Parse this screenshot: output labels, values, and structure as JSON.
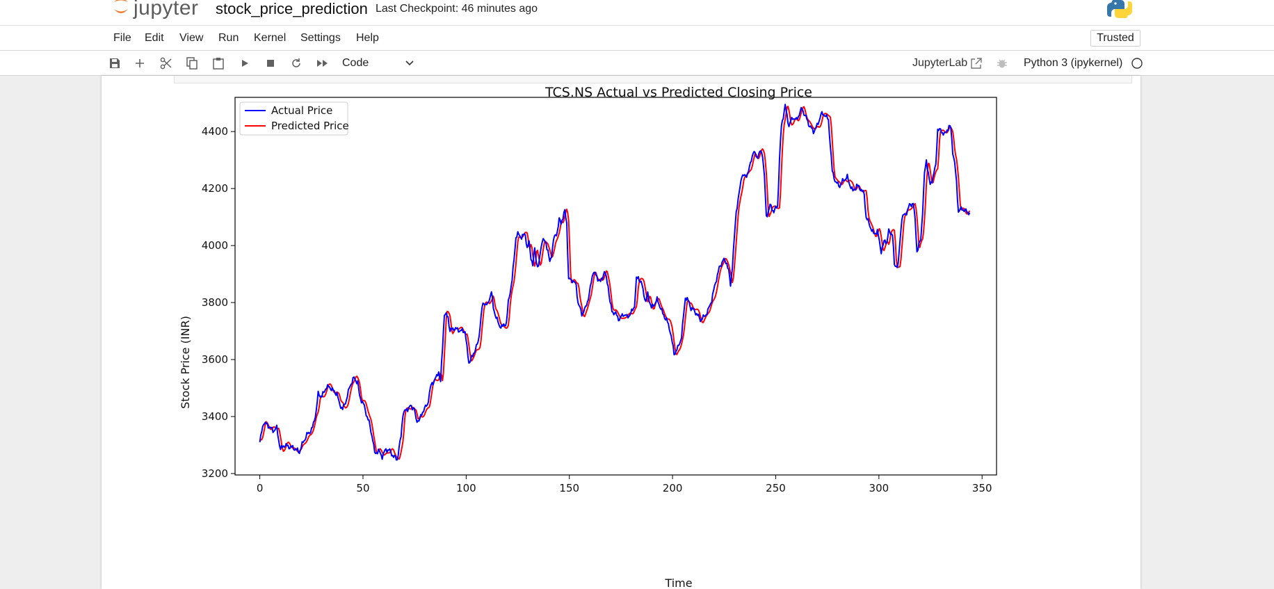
{
  "header": {
    "logo_text": "jupyter",
    "notebook_title": "stock_price_prediction",
    "checkpoint": "Last Checkpoint: 46 minutes ago"
  },
  "menu": {
    "items": [
      "File",
      "Edit",
      "View",
      "Run",
      "Kernel",
      "Settings",
      "Help"
    ],
    "trusted": "Trusted"
  },
  "toolbar": {
    "cell_type": "Code",
    "jupyterlab_link": "JupyterLab",
    "kernel": "Python 3 (ipykernel)",
    "icons": [
      "save-icon",
      "add-cell-icon",
      "cut-icon",
      "copy-icon",
      "paste-icon",
      "run-icon",
      "stop-icon",
      "restart-icon",
      "fast-forward-icon"
    ]
  },
  "colors": {
    "actual": "#0000ff",
    "predicted": "#ff0000",
    "orange": "#f37626"
  },
  "chart_data": {
    "type": "line",
    "title": "TCS.NS Actual vs Predicted Closing Price",
    "xlabel": "Time",
    "ylabel": "Stock Price (INR)",
    "xlim": [
      -12,
      357
    ],
    "ylim": [
      3195,
      4520
    ],
    "xticks": [
      0,
      50,
      100,
      150,
      200,
      250,
      300,
      350
    ],
    "yticks": [
      3200,
      3400,
      3600,
      3800,
      4000,
      4200,
      4400
    ],
    "legend_position": "upper-left",
    "series": [
      {
        "name": "Actual Price",
        "color": "#0000ff",
        "anchors": [
          [
            0,
            3310
          ],
          [
            2,
            3380
          ],
          [
            5,
            3365
          ],
          [
            7,
            3350
          ],
          [
            9,
            3360
          ],
          [
            10,
            3320
          ],
          [
            11,
            3285
          ],
          [
            13,
            3300
          ],
          [
            15,
            3295
          ],
          [
            18,
            3290
          ],
          [
            21,
            3275
          ],
          [
            23,
            3310
          ],
          [
            25,
            3335
          ],
          [
            27,
            3350
          ],
          [
            28,
            3360
          ],
          [
            30,
            3420
          ],
          [
            31,
            3480
          ],
          [
            33,
            3470
          ],
          [
            35,
            3500
          ],
          [
            37,
            3505
          ],
          [
            39,
            3490
          ],
          [
            41,
            3480
          ],
          [
            42,
            3450
          ],
          [
            44,
            3425
          ],
          [
            46,
            3460
          ],
          [
            48,
            3510
          ],
          [
            50,
            3535
          ],
          [
            52,
            3520
          ],
          [
            53,
            3470
          ],
          [
            55,
            3445
          ],
          [
            57,
            3400
          ],
          [
            58,
            3380
          ],
          [
            60,
            3320
          ],
          [
            61,
            3270
          ],
          [
            63,
            3280
          ],
          [
            65,
            3260
          ],
          [
            67,
            3285
          ],
          [
            69,
            3280
          ],
          [
            71,
            3260
          ],
          [
            73,
            3250
          ],
          [
            75,
            3330
          ],
          [
            76,
            3410
          ],
          [
            78,
            3425
          ],
          [
            80,
            3435
          ],
          [
            82,
            3430
          ],
          [
            83,
            3385
          ],
          [
            85,
            3390
          ],
          [
            87,
            3425
          ],
          [
            89,
            3440
          ],
          [
            90,
            3480
          ],
          [
            91,
            3510
          ],
          [
            94,
            3540
          ],
          [
            95,
            3560
          ],
          [
            96,
            3520
          ],
          [
            97,
            3640
          ],
          [
            98,
            3760
          ],
          [
            100,
            3750
          ],
          [
            101,
            3700
          ],
          [
            103,
            3710
          ],
          [
            105,
            3705
          ],
          [
            107,
            3700
          ],
          [
            109,
            3700
          ],
          [
            110,
            3640
          ],
          [
            111,
            3590
          ],
          [
            113,
            3610
          ],
          [
            114,
            3630
          ],
          [
            116,
            3660
          ],
          [
            118,
            3780
          ],
          [
            119,
            3800
          ],
          [
            121,
            3790
          ],
          [
            123,
            3840
          ],
          [
            124,
            3780
          ],
          [
            125,
            3760
          ],
          [
            127,
            3720
          ],
          [
            129,
            3715
          ],
          [
            131,
            3730
          ],
          [
            132,
            3800
          ],
          [
            134,
            3880
          ],
          [
            135,
            3950
          ],
          [
            136,
            4030
          ],
          [
            137,
            4040
          ],
          [
            139,
            4030
          ],
          [
            141,
            4040
          ],
          [
            142,
            3990
          ],
          [
            143,
            4010
          ],
          [
            144,
            3960
          ],
          [
            145,
            3930
          ],
          [
            146,
            3990
          ],
          [
            147,
            3940
          ],
          [
            148,
            3920
          ],
          [
            149,
            3980
          ],
          [
            150,
            4020
          ],
          [
            152,
            4010
          ],
          [
            153,
            3980
          ],
          [
            154,
            3940
          ],
          [
            155,
            3970
          ],
          [
            156,
            4020
          ],
          [
            158,
            4050
          ],
          [
            159,
            4090
          ],
          [
            160,
            4080
          ],
          [
            161,
            4100
          ],
          [
            162,
            4120
          ],
          [
            163,
            4080
          ],
          [
            164,
            3880
          ],
          [
            166,
            3880
          ],
          [
            168,
            3860
          ],
          [
            169,
            3800
          ],
          [
            171,
            3760
          ],
          [
            173,
            3780
          ],
          [
            175,
            3830
          ],
          [
            177,
            3910
          ],
          [
            179,
            3890
          ],
          [
            181,
            3870
          ],
          [
            183,
            3910
          ],
          [
            185,
            3860
          ],
          [
            186,
            3800
          ],
          [
            187,
            3770
          ],
          [
            189,
            3760
          ],
          [
            191,
            3740
          ],
          [
            193,
            3760
          ],
          [
            195,
            3750
          ],
          [
            197,
            3760
          ],
          [
            199,
            3790
          ],
          [
            200,
            3880
          ],
          [
            201,
            3890
          ],
          [
            203,
            3860
          ],
          [
            205,
            3800
          ],
          [
            206,
            3830
          ],
          [
            208,
            3780
          ],
          [
            209,
            3790
          ],
          [
            211,
            3810
          ],
          [
            213,
            3780
          ],
          [
            214,
            3760
          ],
          [
            216,
            3740
          ],
          [
            218,
            3700
          ],
          [
            220,
            3620
          ],
          [
            222,
            3640
          ],
          [
            224,
            3680
          ],
          [
            226,
            3820
          ],
          [
            228,
            3800
          ],
          [
            229,
            3780
          ],
          [
            231,
            3770
          ],
          [
            233,
            3750
          ],
          [
            234,
            3740
          ],
          [
            236,
            3750
          ],
          [
            238,
            3770
          ],
          [
            240,
            3810
          ],
          [
            242,
            3870
          ],
          [
            244,
            3920
          ],
          [
            246,
            3950
          ],
          [
            248,
            3940
          ],
          [
            249,
            3910
          ],
          [
            250,
            3860
          ],
          [
            251,
            3930
          ],
          [
            253,
            4120
          ],
          [
            255,
            4200
          ],
          [
            256,
            4250
          ],
          [
            258,
            4240
          ],
          [
            260,
            4270
          ],
          [
            262,
            4330
          ],
          [
            264,
            4310
          ],
          [
            266,
            4330
          ],
          [
            267,
            4320
          ],
          [
            268,
            4240
          ],
          [
            269,
            4100
          ],
          [
            271,
            4140
          ],
          [
            273,
            4120
          ],
          [
            275,
            4140
          ],
          [
            276,
            4300
          ],
          [
            277,
            4420
          ],
          [
            279,
            4490
          ],
          [
            281,
            4420
          ],
          [
            283,
            4450
          ],
          [
            285,
            4440
          ],
          [
            287,
            4470
          ],
          [
            288,
            4480
          ],
          [
            290,
            4450
          ],
          [
            292,
            4420
          ],
          [
            294,
            4400
          ],
          [
            296,
            4420
          ],
          [
            298,
            4460
          ],
          [
            300,
            4460
          ],
          [
            302,
            4440
          ],
          [
            303,
            4350
          ],
          [
            304,
            4260
          ],
          [
            306,
            4220
          ],
          [
            308,
            4210
          ],
          [
            310,
            4230
          ],
          [
            312,
            4240
          ],
          [
            313,
            4220
          ],
          [
            315,
            4190
          ],
          [
            317,
            4210
          ],
          [
            319,
            4200
          ],
          [
            321,
            4180
          ],
          [
            322,
            4100
          ],
          [
            324,
            4070
          ],
          [
            326,
            4040
          ],
          [
            328,
            4050
          ],
          [
            330,
            3980
          ],
          [
            332,
            4020
          ],
          [
            333,
            4010
          ],
          [
            334,
            4050
          ],
          [
            336,
            4040
          ],
          [
            337,
            3930
          ],
          [
            339,
            3930
          ],
          [
            341,
            4100
          ],
          [
            343,
            4110
          ],
          [
            345,
            4140
          ],
          [
            347,
            4150
          ],
          [
            348,
            4090
          ],
          [
            349,
            3980
          ],
          [
            351,
            4020
          ],
          [
            352,
            4120
          ],
          [
            353,
            4250
          ],
          [
            354,
            4300
          ],
          [
            356,
            4210
          ],
          [
            357,
            4230
          ],
          [
            359,
            4280
          ],
          [
            360,
            4410
          ],
          [
            362,
            4400
          ],
          [
            364,
            4390
          ],
          [
            366,
            4420
          ],
          [
            367,
            4410
          ],
          [
            368,
            4330
          ],
          [
            369,
            4290
          ],
          [
            370,
            4220
          ],
          [
            371,
            4120
          ],
          [
            373,
            4130
          ],
          [
            375,
            4120
          ],
          [
            377,
            4115
          ]
        ]
      },
      {
        "name": "Predicted Price",
        "color": "#ff0000",
        "lag": 1.1,
        "offset": 8
      }
    ]
  }
}
